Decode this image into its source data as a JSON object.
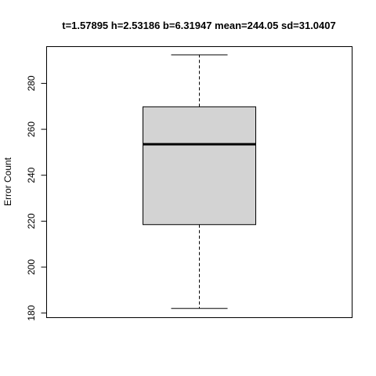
{
  "chart_data": {
    "type": "box",
    "title": "t=1.57895 h=2.53186 b=6.31947 mean=244.05 sd=31.0407",
    "xlabel": "",
    "ylabel": "Error Count",
    "ylim": [
      178,
      296
    ],
    "yticks": [
      180,
      200,
      220,
      240,
      260,
      280
    ],
    "ytick_labels": [
      "180",
      "200",
      "220",
      "240",
      "260",
      "280"
    ],
    "grid": false,
    "box": {
      "min": 182,
      "q1": 218.5,
      "median": 253.5,
      "q3": 269.8,
      "max": 292.4,
      "fill": "#d3d3d3"
    }
  }
}
